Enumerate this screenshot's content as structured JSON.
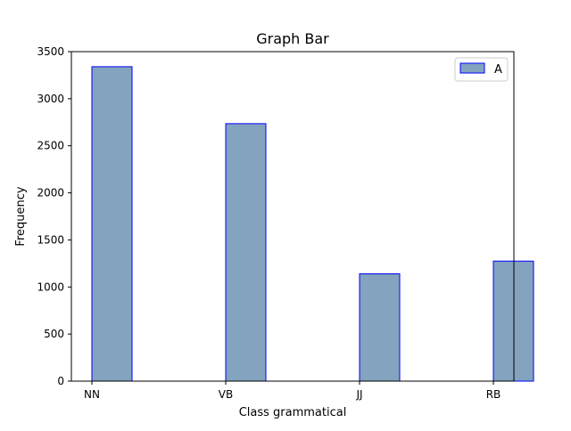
{
  "chart_data": {
    "type": "bar",
    "title": "Graph Bar",
    "xlabel": "Class grammatical",
    "ylabel": "Frequency",
    "categories": [
      "NN",
      "VB",
      "JJ",
      "RB"
    ],
    "series": [
      {
        "name": "A",
        "values": [
          3340,
          2735,
          1140,
          1275
        ]
      }
    ],
    "ylim": [
      0,
      3500
    ],
    "yticks": [
      0,
      500,
      1000,
      1500,
      2000,
      2500,
      3000,
      3500
    ],
    "grid": false,
    "legend_position": "top-right",
    "colors": {
      "bar_fill": "#83a3be",
      "bar_edge": "#0000ff",
      "axis": "#000000"
    }
  }
}
